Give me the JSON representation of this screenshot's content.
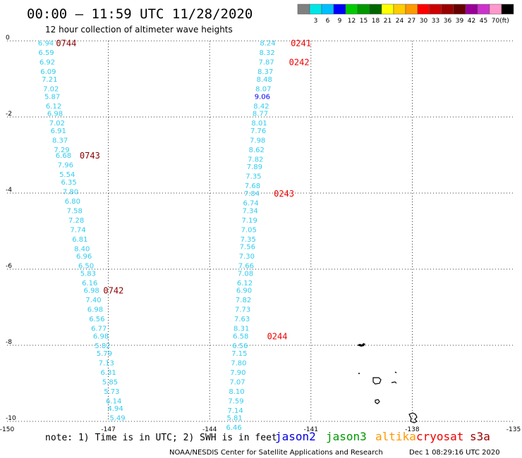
{
  "header": {
    "title": "00:00 – 11:59 UTC 11/28/2020",
    "subtitle": "12 hour collection of altimeter wave heights"
  },
  "legend": {
    "colors": [
      "#808080",
      "#00e6e6",
      "#00bfff",
      "#0000ff",
      "#00cc00",
      "#009900",
      "#006600",
      "#ffff00",
      "#ffcc00",
      "#ff9900",
      "#ff0000",
      "#cc0000",
      "#990000",
      "#660000",
      "#990099",
      "#cc33cc",
      "#ff99cc",
      "#000000"
    ],
    "labels": [
      "3",
      "6",
      "9",
      "12",
      "15",
      "18",
      "21",
      "24",
      "27",
      "30",
      "33",
      "36",
      "39",
      "42",
      "45",
      "70"
    ],
    "unit": "(ft)"
  },
  "footer": {
    "note": "note:  1) Time is in UTC; 2) SWH is in feet",
    "credit": "NOAA/NESDIS Center for Satellite Applications and Research",
    "timestamp": "Dec  1 08:29:16 UTC 2020",
    "satellites": [
      {
        "name": "jason2",
        "color": "#0000dd"
      },
      {
        "name": "jason3",
        "color": "#009900"
      },
      {
        "name": "altika",
        "color": "#ff9900"
      },
      {
        "name": "cryosat",
        "color": "#ee0000"
      },
      {
        "name": "s3a",
        "color": "#990000"
      }
    ]
  },
  "chart_data": {
    "type": "scatter",
    "title": "12 hour collection of altimeter wave heights",
    "xlim": [
      -150,
      -135
    ],
    "ylim": [
      -10,
      0
    ],
    "grid": true,
    "x_ticks": [
      "-150",
      "-147",
      "-144",
      "-141",
      "-138",
      "-135"
    ],
    "x_tick_values": [
      -150,
      -147,
      -144,
      -141,
      -138,
      -135
    ],
    "y_ticks": [
      "0",
      "-2",
      "-4",
      "-6",
      "-8",
      "-10"
    ],
    "y_tick_values": [
      0,
      -2,
      -4,
      -6,
      -8,
      -10
    ],
    "tracks": [
      {
        "satellite": "s3a",
        "color": "#33ccee",
        "points": [
          {
            "x": -148.85,
            "y": -0.05,
            "v": "6.94"
          },
          {
            "x": -148.84,
            "y": -0.3,
            "v": "6.59"
          },
          {
            "x": -148.81,
            "y": -0.55,
            "v": "6.92"
          },
          {
            "x": -148.78,
            "y": -0.8,
            "v": "6.09"
          },
          {
            "x": -148.74,
            "y": -1.0,
            "v": "7.21"
          },
          {
            "x": -148.7,
            "y": -1.25,
            "v": "7.02"
          },
          {
            "x": -148.66,
            "y": -1.45,
            "v": "5.87"
          },
          {
            "x": -148.62,
            "y": -1.7,
            "v": "6.12"
          },
          {
            "x": -148.58,
            "y": -1.9,
            "v": "6.98"
          },
          {
            "x": -148.52,
            "y": -2.15,
            "v": "7.02"
          },
          {
            "x": -148.48,
            "y": -2.35,
            "v": "6.91"
          },
          {
            "x": -148.43,
            "y": -2.6,
            "v": "8.37"
          },
          {
            "x": -148.38,
            "y": -2.85,
            "v": "7.29"
          },
          {
            "x": -148.33,
            "y": -3.0,
            "v": "6.68"
          },
          {
            "x": -148.27,
            "y": -3.25,
            "v": "7.96"
          },
          {
            "x": -148.22,
            "y": -3.5,
            "v": "5.54"
          },
          {
            "x": -148.17,
            "y": -3.7,
            "v": "6.35"
          },
          {
            "x": -148.12,
            "y": -3.95,
            "v": "7.80"
          },
          {
            "x": -148.06,
            "y": -4.2,
            "v": "6.80"
          },
          {
            "x": -148.0,
            "y": -4.45,
            "v": "7.58"
          },
          {
            "x": -147.95,
            "y": -4.7,
            "v": "7.28"
          },
          {
            "x": -147.9,
            "y": -4.95,
            "v": "7.74"
          },
          {
            "x": -147.84,
            "y": -5.2,
            "v": "6.81"
          },
          {
            "x": -147.78,
            "y": -5.45,
            "v": "8.40"
          },
          {
            "x": -147.72,
            "y": -5.65,
            "v": "6.96"
          },
          {
            "x": -147.66,
            "y": -5.9,
            "v": "6.50"
          },
          {
            "x": -147.6,
            "y": -6.1,
            "v": "5.83"
          },
          {
            "x": -147.55,
            "y": -6.35,
            "v": "6.16"
          },
          {
            "x": -147.5,
            "y": -6.55,
            "v": "6.98"
          },
          {
            "x": -147.44,
            "y": -6.8,
            "v": "7.40"
          },
          {
            "x": -147.39,
            "y": -7.05,
            "v": "6.98"
          },
          {
            "x": -147.34,
            "y": -7.3,
            "v": "6.56"
          },
          {
            "x": -147.28,
            "y": -7.55,
            "v": "6.77"
          },
          {
            "x": -147.22,
            "y": -7.75,
            "v": "6.98"
          },
          {
            "x": -147.17,
            "y": -8.0,
            "v": "5.82"
          },
          {
            "x": -147.12,
            "y": -8.2,
            "v": "5.79"
          },
          {
            "x": -147.06,
            "y": -8.45,
            "v": "7.13"
          },
          {
            "x": -147.0,
            "y": -8.7,
            "v": "6.31"
          },
          {
            "x": -146.95,
            "y": -8.95,
            "v": "5.85"
          },
          {
            "x": -146.9,
            "y": -9.2,
            "v": "5.73"
          },
          {
            "x": -146.84,
            "y": -9.45,
            "v": "6.14"
          },
          {
            "x": -146.79,
            "y": -9.65,
            "v": "4.94"
          },
          {
            "x": -146.73,
            "y": -9.9,
            "v": "5.49"
          }
        ],
        "time_labels": [
          {
            "x": -148.55,
            "y": -0.05,
            "v": "0744"
          },
          {
            "x": -147.85,
            "y": -3.0,
            "v": "0743"
          },
          {
            "x": -147.15,
            "y": -6.55,
            "v": "0742"
          }
        ],
        "time_color": "#880000"
      },
      {
        "satellite": "cryosat",
        "color": "#33ccee",
        "points": [
          {
            "x": -142.28,
            "y": -0.05,
            "v": "8.24"
          },
          {
            "x": -142.3,
            "y": -0.3,
            "v": "8.32"
          },
          {
            "x": -142.32,
            "y": -0.55,
            "v": "7.87"
          },
          {
            "x": -142.35,
            "y": -0.8,
            "v": "8.37"
          },
          {
            "x": -142.38,
            "y": -1.0,
            "v": "8.48"
          },
          {
            "x": -142.41,
            "y": -1.25,
            "v": "8.07"
          },
          {
            "x": -142.44,
            "y": -1.45,
            "v": "9.06"
          },
          {
            "x": -142.47,
            "y": -1.7,
            "v": "8.42"
          },
          {
            "x": -142.5,
            "y": -1.9,
            "v": "8.77"
          },
          {
            "x": -142.53,
            "y": -2.15,
            "v": "8.01"
          },
          {
            "x": -142.56,
            "y": -2.35,
            "v": "7.76"
          },
          {
            "x": -142.58,
            "y": -2.6,
            "v": "7.98"
          },
          {
            "x": -142.61,
            "y": -2.85,
            "v": "8.62"
          },
          {
            "x": -142.64,
            "y": -3.1,
            "v": "7.82"
          },
          {
            "x": -142.67,
            "y": -3.3,
            "v": "7.89"
          },
          {
            "x": -142.7,
            "y": -3.55,
            "v": "7.35"
          },
          {
            "x": -142.73,
            "y": -3.8,
            "v": "7.68"
          },
          {
            "x": -142.75,
            "y": -4.0,
            "v": "7.84"
          },
          {
            "x": -142.78,
            "y": -4.25,
            "v": "6.74"
          },
          {
            "x": -142.8,
            "y": -4.45,
            "v": "7.34"
          },
          {
            "x": -142.82,
            "y": -4.7,
            "v": "7.19"
          },
          {
            "x": -142.84,
            "y": -4.95,
            "v": "7.05"
          },
          {
            "x": -142.86,
            "y": -5.2,
            "v": "7.35"
          },
          {
            "x": -142.88,
            "y": -5.4,
            "v": "7.56"
          },
          {
            "x": -142.9,
            "y": -5.65,
            "v": "7.30"
          },
          {
            "x": -142.92,
            "y": -5.9,
            "v": "7.66"
          },
          {
            "x": -142.94,
            "y": -6.1,
            "v": "7.08"
          },
          {
            "x": -142.96,
            "y": -6.35,
            "v": "6.12"
          },
          {
            "x": -142.98,
            "y": -6.55,
            "v": "6.90"
          },
          {
            "x": -143.0,
            "y": -6.8,
            "v": "7.82"
          },
          {
            "x": -143.02,
            "y": -7.05,
            "v": "7.73"
          },
          {
            "x": -143.04,
            "y": -7.3,
            "v": "7.63"
          },
          {
            "x": -143.06,
            "y": -7.55,
            "v": "8.31"
          },
          {
            "x": -143.08,
            "y": -7.75,
            "v": "6.58"
          },
          {
            "x": -143.1,
            "y": -8.0,
            "v": "6.56"
          },
          {
            "x": -143.12,
            "y": -8.2,
            "v": "7.15"
          },
          {
            "x": -143.14,
            "y": -8.45,
            "v": "7.80"
          },
          {
            "x": -143.16,
            "y": -8.7,
            "v": "7.90"
          },
          {
            "x": -143.18,
            "y": -8.95,
            "v": "7.07"
          },
          {
            "x": -143.2,
            "y": -9.2,
            "v": "8.10"
          },
          {
            "x": -143.22,
            "y": -9.45,
            "v": "7.59"
          },
          {
            "x": -143.24,
            "y": -9.7,
            "v": "7.14"
          },
          {
            "x": -143.26,
            "y": -9.9,
            "v": "5.81"
          },
          {
            "x": -143.28,
            "y": -10.15,
            "v": "6.46"
          }
        ],
        "time_labels": [
          {
            "x": -141.6,
            "y": -0.05,
            "v": "0241"
          },
          {
            "x": -141.65,
            "y": -0.55,
            "v": "0242"
          },
          {
            "x": -142.1,
            "y": -4.0,
            "v": "0243"
          },
          {
            "x": -142.3,
            "y": -7.75,
            "v": "0244"
          }
        ],
        "time_color": "#ee0000"
      }
    ]
  }
}
